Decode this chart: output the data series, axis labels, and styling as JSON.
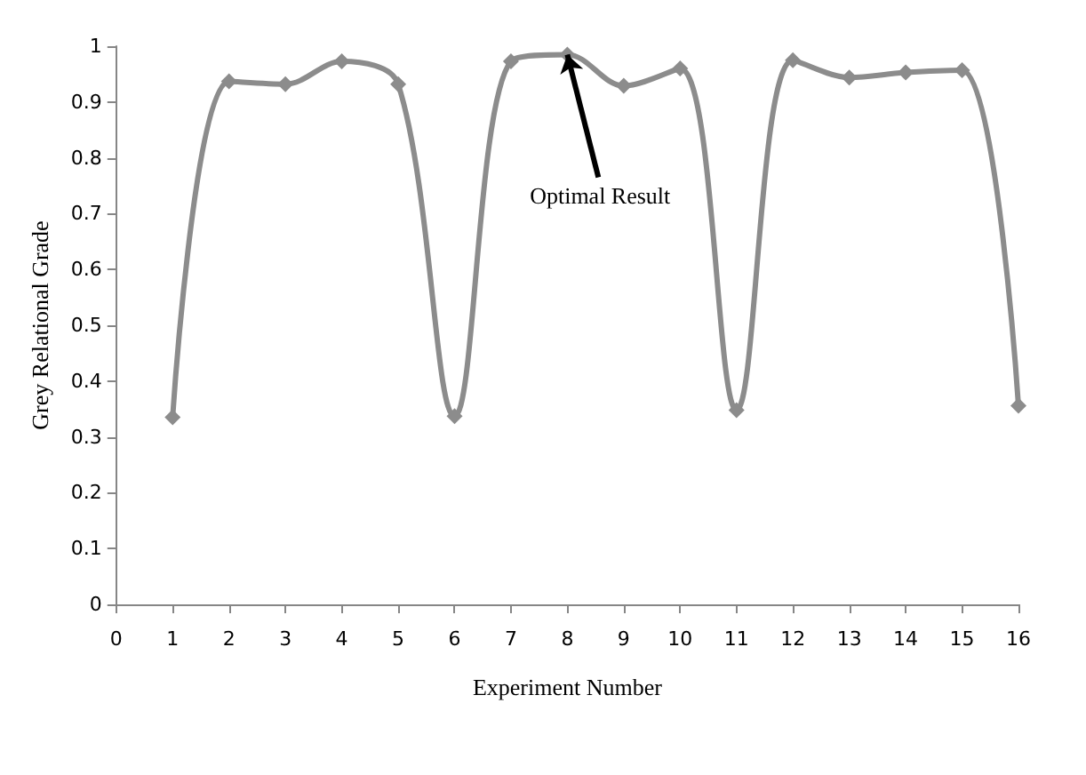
{
  "chart_data": {
    "type": "line",
    "xlabel": "Experiment Number",
    "ylabel": "Grey Relational Grade",
    "x": [
      1,
      2,
      3,
      4,
      5,
      6,
      7,
      8,
      9,
      10,
      11,
      12,
      13,
      14,
      15,
      16
    ],
    "series": [
      {
        "color": "#8c8c8c",
        "values": [
          0.335,
          0.937,
          0.932,
          0.973,
          0.932,
          0.337,
          0.973,
          0.985,
          0.929,
          0.96,
          0.348,
          0.975,
          0.944,
          0.953,
          0.957,
          0.356
        ]
      }
    ],
    "xlim": [
      0,
      16
    ],
    "xticks": [
      0,
      1,
      2,
      3,
      4,
      5,
      6,
      7,
      8,
      9,
      10,
      11,
      12,
      13,
      14,
      15,
      16
    ],
    "ylim": [
      0,
      1
    ],
    "yticks": [
      0,
      0.1,
      0.2,
      0.3,
      0.4,
      0.5,
      0.6,
      0.7,
      0.8,
      0.9,
      1
    ],
    "marker": "diamond",
    "line_style": "solid",
    "annotations": [
      {
        "text": "Optimal Result",
        "x": 8,
        "y": 0.985
      }
    ]
  }
}
